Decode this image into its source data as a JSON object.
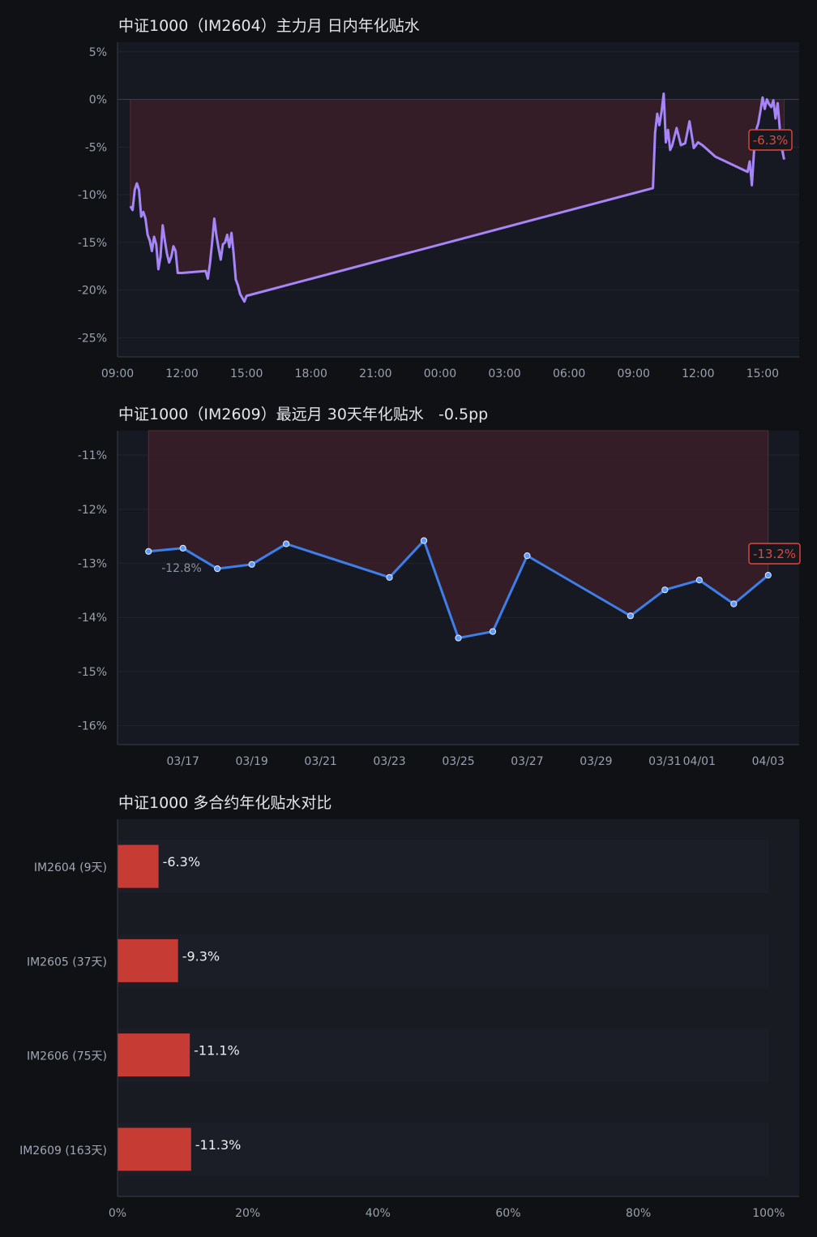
{
  "colors": {
    "background": "#101115",
    "plot_background": "#171922",
    "fill_negative": "#3a1f28",
    "intraday_line": "#a585f7",
    "curve_line": "#3d7fe8",
    "bar": "#c63c35",
    "badge": "#e5463d",
    "axis_text": "#9aa0ae"
  },
  "chart_data": [
    {
      "type": "line",
      "title": "中证1000（IM2604）主力月 日内年化贴水",
      "ylim": [
        -27,
        6
      ],
      "yticks": [
        5,
        0,
        -5,
        -10,
        -15,
        -20,
        -25
      ],
      "ytick_labels": [
        "5%",
        "0%",
        "-5%",
        "-10%",
        "-15%",
        "-20%",
        "-25%"
      ],
      "xlim": [
        0,
        31.7
      ],
      "xticks": [
        0,
        3,
        6,
        9,
        12,
        15,
        18,
        21,
        24,
        27,
        30
      ],
      "xtick_labels": [
        "09:00",
        "12:00",
        "15:00",
        "18:00",
        "21:00",
        "00:00",
        "03:00",
        "06:00",
        "09:00",
        "12:00",
        "15:00"
      ],
      "x": [
        0.6,
        0.7,
        0.8,
        0.9,
        1.0,
        1.1,
        1.2,
        1.3,
        1.4,
        1.5,
        1.6,
        1.7,
        1.8,
        1.9,
        2.0,
        2.1,
        2.2,
        2.3,
        2.4,
        2.5,
        2.6,
        2.7,
        2.8,
        2.9,
        3.0,
        4.1,
        4.2,
        4.3,
        4.4,
        4.5,
        4.6,
        4.7,
        4.8,
        4.9,
        5.0,
        5.1,
        5.2,
        5.3,
        5.4,
        5.5,
        5.6,
        5.7,
        5.8,
        5.9,
        6.0,
        24.9,
        25.0,
        25.1,
        25.2,
        25.3,
        25.4,
        25.5,
        25.6,
        25.7,
        25.8,
        26.0,
        26.2,
        26.4,
        26.6,
        26.8,
        27.0,
        27.2,
        27.4,
        27.6,
        27.8,
        29.3,
        29.4,
        29.5,
        29.6,
        29.7,
        29.8,
        29.9,
        30.0,
        30.1,
        30.2,
        30.3,
        30.4,
        30.5,
        30.6,
        30.7,
        30.8,
        30.9,
        31.0
      ],
      "values": [
        -11.2,
        -11.6,
        -9.5,
        -8.8,
        -9.5,
        -12.3,
        -11.8,
        -12.5,
        -14.2,
        -14.8,
        -15.9,
        -14.4,
        -15.2,
        -17.8,
        -16.5,
        -13.2,
        -14.8,
        -16.2,
        -17.1,
        -16.5,
        -15.4,
        -15.9,
        -18.2,
        -18.2,
        -18.2,
        -18.0,
        -18.8,
        -17.2,
        -15.0,
        -12.5,
        -14.3,
        -15.6,
        -16.8,
        -15.2,
        -15.0,
        -14.2,
        -15.5,
        -14.0,
        -16.2,
        -18.9,
        -19.5,
        -20.4,
        -20.8,
        -21.2,
        -20.6,
        -9.3,
        -3.5,
        -1.5,
        -2.7,
        -1.3,
        0.6,
        -4.5,
        -3.2,
        -5.3,
        -4.8,
        -3.0,
        -4.8,
        -4.6,
        -2.3,
        -5.1,
        -4.5,
        -4.8,
        -5.2,
        -5.6,
        -6.0,
        -7.6,
        -6.5,
        -9.0,
        -5.5,
        -3.2,
        -2.5,
        -1.2,
        0.2,
        -1.0,
        0.0,
        -0.5,
        -0.8,
        -0.1,
        -2.0,
        -0.4,
        -3.1,
        -5.2,
        -6.3
      ],
      "last_label": "-6.3%",
      "fill_to_zero": true,
      "grid": true
    },
    {
      "type": "line",
      "title": "中证1000（IM2609）最远月 30天年化贴水   -0.5pp",
      "ylim": [
        -16.35,
        -10.55
      ],
      "yticks": [
        -11,
        -12,
        -13,
        -14,
        -15,
        -16
      ],
      "ytick_labels": [
        "-11%",
        "-12%",
        "-13%",
        "-14%",
        "-15%",
        "-16%"
      ],
      "xlim": [
        -0.9,
        18.9
      ],
      "xticks": [
        1,
        3,
        5,
        7,
        9,
        11,
        13,
        15,
        16,
        18
      ],
      "xtick_labels": [
        "03/17",
        "03/19",
        "03/21",
        "03/23",
        "03/25",
        "03/27",
        "03/29",
        "03/31",
        "04/01",
        "04/03"
      ],
      "x": [
        0,
        1,
        2,
        3,
        4,
        7,
        8,
        9,
        10,
        11,
        14,
        15,
        16,
        17,
        18
      ],
      "values": [
        -12.78,
        -12.72,
        -13.1,
        -13.02,
        -12.64,
        -13.26,
        -12.58,
        -14.38,
        -14.26,
        -12.86,
        -13.97,
        -13.49,
        -13.31,
        -13.75,
        -13.22
      ],
      "first_label": "-12.8%",
      "last_label": "-13.2%",
      "grid": true
    },
    {
      "type": "bar",
      "orientation": "horizontal",
      "title": "中证1000 多合约年化贴水对比",
      "categories": [
        "IM2604 (9天)",
        "IM2605 (37天)",
        "IM2606 (75天)",
        "IM2609 (163天)"
      ],
      "values": [
        6.3,
        9.3,
        11.1,
        11.3
      ],
      "value_labels": [
        "-6.3%",
        "-9.3%",
        "-11.1%",
        "-11.3%"
      ],
      "xlim": [
        0,
        104.7
      ],
      "xticks": [
        0,
        20,
        40,
        60,
        80,
        100
      ],
      "xtick_labels": [
        "0%",
        "20%",
        "40%",
        "60%",
        "80%",
        "100%"
      ]
    }
  ]
}
